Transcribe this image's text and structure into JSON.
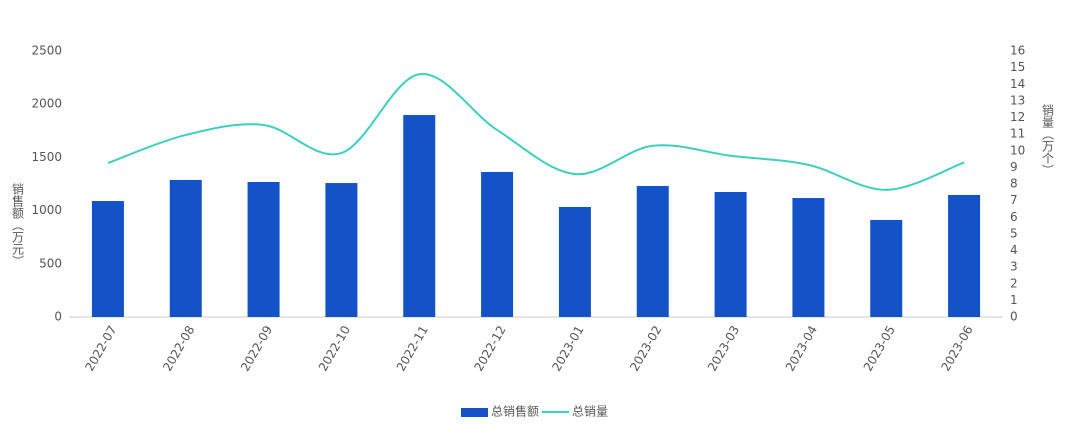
{
  "chart_data": {
    "type": "bar-line",
    "categories": [
      "2022-07",
      "2022-08",
      "2022-09",
      "2022-10",
      "2022-11",
      "2022-12",
      "2023-01",
      "2023-02",
      "2023-03",
      "2023-04",
      "2023-05",
      "2023-06"
    ],
    "y_label": "销售额（万元）",
    "y2_label": "销量（万个）",
    "series": [
      {
        "name": "总销售额",
        "type": "bar",
        "color": "#1452c7",
        "values": [
          1090,
          1288,
          1269,
          1259,
          1898,
          1363,
          1034,
          1231,
          1175,
          1118,
          912,
          1147
        ]
      },
      {
        "name": "总销量",
        "type": "line",
        "axis": "y2",
        "color": "#3ecfc0",
        "values": [
          9.26,
          10.95,
          11.55,
          9.86,
          14.6,
          11.25,
          8.6,
          10.3,
          9.7,
          9.15,
          7.65,
          9.3
        ]
      }
    ],
    "ylim": [
      0,
      2500
    ],
    "yticks": [
      0,
      500,
      1000,
      1500,
      2000,
      2500
    ],
    "y2lim": [
      0,
      16
    ],
    "y2ticks": [
      0,
      1,
      2,
      3,
      4,
      5,
      6,
      7,
      8,
      9,
      10,
      11,
      12,
      13,
      14,
      15,
      16
    ],
    "legend": "bottom"
  }
}
